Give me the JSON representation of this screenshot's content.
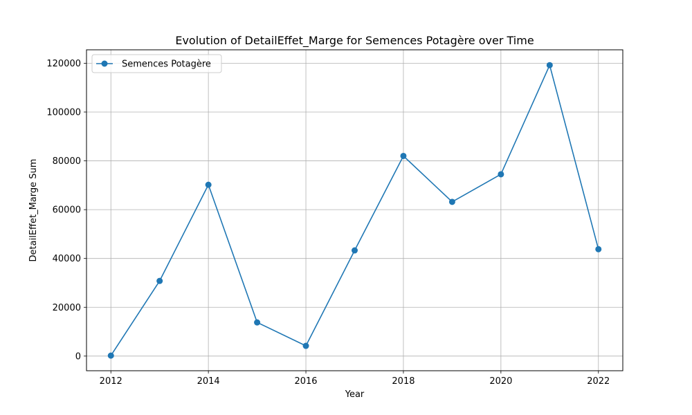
{
  "chart_data": {
    "type": "line",
    "title": "Evolution of DetailEffet_Marge for Semences Potagère over Time",
    "xlabel": "Year",
    "ylabel": "DetailEffet_Marge Sum",
    "x": [
      2012,
      2013,
      2014,
      2015,
      2016,
      2017,
      2018,
      2019,
      2020,
      2021,
      2022
    ],
    "series": [
      {
        "name": "Semences Potagère",
        "values": [
          200,
          30800,
          70200,
          13800,
          4200,
          43300,
          82000,
          63200,
          74500,
          119200,
          43800
        ],
        "color": "#1f77b4",
        "marker": "circle"
      }
    ],
    "xlim": [
      2011.5,
      2022.5
    ],
    "ylim": [
      -6000,
      125500
    ],
    "xticks": [
      "2012",
      "2014",
      "2016",
      "2018",
      "2020",
      "2022"
    ],
    "yticks": [
      "0",
      "20000",
      "40000",
      "60000",
      "80000",
      "100000",
      "120000"
    ],
    "grid": true,
    "legend_position": "upper-left"
  }
}
